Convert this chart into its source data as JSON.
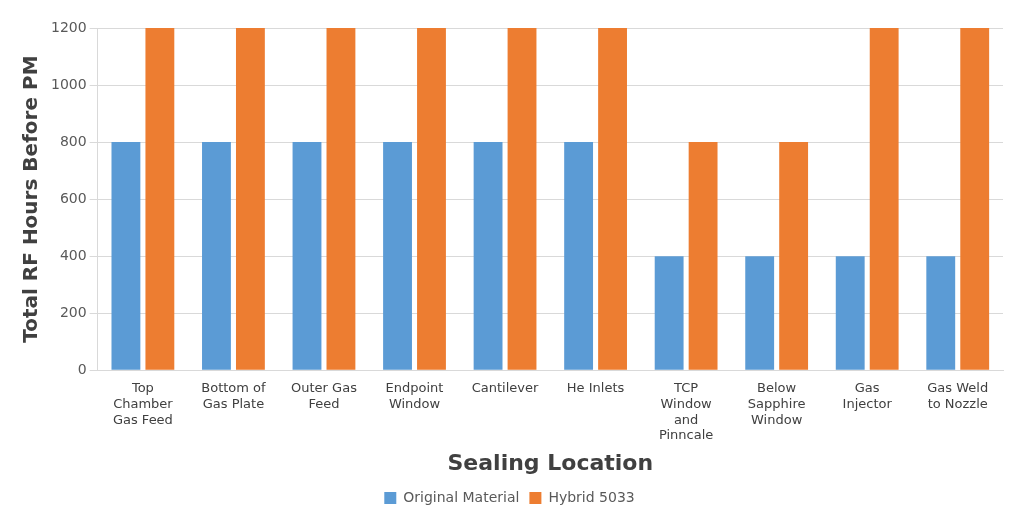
{
  "chart_data": {
    "type": "bar",
    "xlabel": "Sealing Location",
    "ylabel": "Total RF Hours Before PM",
    "categories": [
      "Top Chamber Gas Feed",
      "Bottom of Gas Plate",
      "Outer Gas Feed",
      "Endpoint Window",
      "Cantilever",
      "He Inlets",
      "TCP Window and Pinncale",
      "Below Sapphire Window",
      "Gas Injector",
      "Gas Weld to Nozzle"
    ],
    "series": [
      {
        "name": "Original Material",
        "color": "#5b9bd5",
        "values": [
          800,
          800,
          800,
          800,
          800,
          800,
          400,
          400,
          400,
          400
        ]
      },
      {
        "name": "Hybrid 5033",
        "color": "#ed7d31",
        "values": [
          1200,
          1200,
          1200,
          1200,
          1200,
          1200,
          800,
          800,
          1200,
          1200
        ]
      }
    ],
    "ylim": [
      0,
      1200
    ],
    "yticks": [
      0,
      200,
      400,
      600,
      800,
      1000,
      1200
    ],
    "grid": "y",
    "legend": "bottom"
  }
}
